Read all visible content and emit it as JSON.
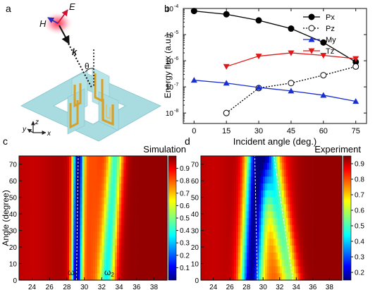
{
  "panel_labels": {
    "a": "a",
    "b": "b",
    "c": "c",
    "d": "d"
  },
  "schematic": {
    "field_E": "E",
    "field_H": "H",
    "wavevector_k": "k",
    "angle_theta": "θ",
    "axis_x": "x",
    "axis_y": "y",
    "axis_z": "z",
    "colors": {
      "plate": "#a8dce0",
      "resonator": "#d8a028",
      "beam": "#e3203a"
    }
  },
  "chart_data": [
    {
      "id": "b",
      "type": "line",
      "title": "",
      "xlabel": "Incident angle (deg.)",
      "ylabel": "Energy flux (a.u.)",
      "yscale": "log",
      "xlim": [
        -5,
        80
      ],
      "ylim_exp": [
        -8.4,
        -4
      ],
      "x_ticks": [
        0,
        15,
        30,
        45,
        60,
        75
      ],
      "y_ticks": [
        {
          "exp": -4,
          "label": "10",
          "sup": "-4"
        },
        {
          "exp": -5,
          "label": "10",
          "sup": "-5"
        },
        {
          "exp": -6,
          "label": "10",
          "sup": "-6"
        },
        {
          "exp": -7,
          "label": "10",
          "sup": "-7"
        },
        {
          "exp": -8,
          "label": "10",
          "sup": "-8"
        }
      ],
      "legend_position": "top-right",
      "grid": false,
      "series": [
        {
          "name": "Px",
          "marker": "circle",
          "color": "#000000",
          "fill": "#000000",
          "dash": "",
          "x": [
            0,
            15,
            30,
            45,
            60,
            75
          ],
          "y": [
            8e-05,
            6e-05,
            3.5e-05,
            1.7e-05,
            5e-06,
            9e-07
          ]
        },
        {
          "name": "Pz",
          "marker": "circle-open",
          "color": "#000000",
          "fill": "#ffffff",
          "dash": "2,2",
          "x": [
            15,
            30,
            45,
            60,
            75
          ],
          "y": [
            1e-08,
            9e-08,
            1.4e-07,
            2.8e-07,
            6e-07
          ]
        },
        {
          "name": "My",
          "marker": "triangle-up",
          "color": "#1a2fd0",
          "fill": "#1a2fd0",
          "dash": "",
          "x": [
            0,
            15,
            30,
            45,
            60,
            75
          ],
          "y": [
            1.8e-07,
            1.4e-07,
            9.5e-08,
            7e-08,
            4.8e-08,
            2.8e-08
          ]
        },
        {
          "name": "Tz",
          "marker": "triangle-down",
          "color": "#e01818",
          "fill": "#e01818",
          "dash": "",
          "x": [
            15,
            30,
            45,
            60,
            75
          ],
          "y": [
            6e-07,
            1.5e-06,
            2e-06,
            1.6e-06,
            1.2e-06
          ]
        }
      ]
    },
    {
      "id": "c",
      "type": "heatmap",
      "title": "Simulation",
      "xlabel": "",
      "ylabel": "Angle (degree)",
      "xlim": [
        22.5,
        39.5
      ],
      "ylim": [
        0,
        75
      ],
      "x_ticks": [
        24,
        26,
        28,
        30,
        32,
        34,
        36,
        38
      ],
      "y_ticks": [
        0,
        10,
        20,
        30,
        40,
        50,
        60,
        70
      ],
      "colorbar": {
        "min": 0,
        "max": 1,
        "ticks": [
          0.1,
          0.2,
          0.3,
          0.4,
          0.5,
          0.6,
          0.7,
          0.8,
          0.9
        ],
        "tick_labels": [
          "0.1",
          "0.2",
          "0.3",
          "0.4",
          "0.5",
          "0.6",
          "0.7",
          "0.8",
          "0.9"
        ]
      },
      "features": [
        {
          "kind": "dip",
          "label": "ω1",
          "x0": 29.1,
          "x75": 29.3,
          "width": 0.6,
          "depth": 0.92
        },
        {
          "kind": "dip",
          "label": "ω2",
          "x0": 32.6,
          "x75": 33.6,
          "width": 0.9,
          "depth": 0.5
        }
      ],
      "annotations": [
        {
          "text": "ω",
          "sub": "1",
          "x": 28.1,
          "y": 3
        },
        {
          "text": "ω",
          "sub": "2",
          "x": 32.3,
          "y": 3
        }
      ],
      "dashed_guides": [
        {
          "x0": 29.1,
          "x75": 29.3
        }
      ]
    },
    {
      "id": "d",
      "type": "heatmap",
      "title": "Experiment",
      "xlabel": "",
      "ylabel": "",
      "xlim": [
        22.5,
        39.5
      ],
      "ylim": [
        0,
        75
      ],
      "x_ticks": [
        24,
        26,
        28,
        30,
        32,
        34,
        36,
        38
      ],
      "y_ticks": [
        0,
        10,
        20,
        30,
        40,
        50,
        60,
        70
      ],
      "colorbar": {
        "min": 0.15,
        "max": 0.95,
        "ticks": [
          0.2,
          0.3,
          0.4,
          0.5,
          0.6,
          0.7,
          0.8,
          0.9
        ],
        "tick_labels": [
          "0.2",
          "0.3",
          "0.4",
          "0.5",
          "0.6",
          "0.7",
          "0.8",
          "0.9"
        ]
      },
      "features": [
        {
          "kind": "dip",
          "x0": 28.5,
          "x75": 29.3,
          "width": 1.3,
          "depth": 0.9
        },
        {
          "kind": "dip",
          "x0": 33.3,
          "x75": 30.8,
          "width": 1.1,
          "depth": 0.4
        }
      ],
      "annotations": [],
      "dashed_guides": [
        {
          "x0": 29.3,
          "x75": 29.0
        },
        {
          "x0": 33.6,
          "x75": 31.3
        }
      ]
    }
  ]
}
